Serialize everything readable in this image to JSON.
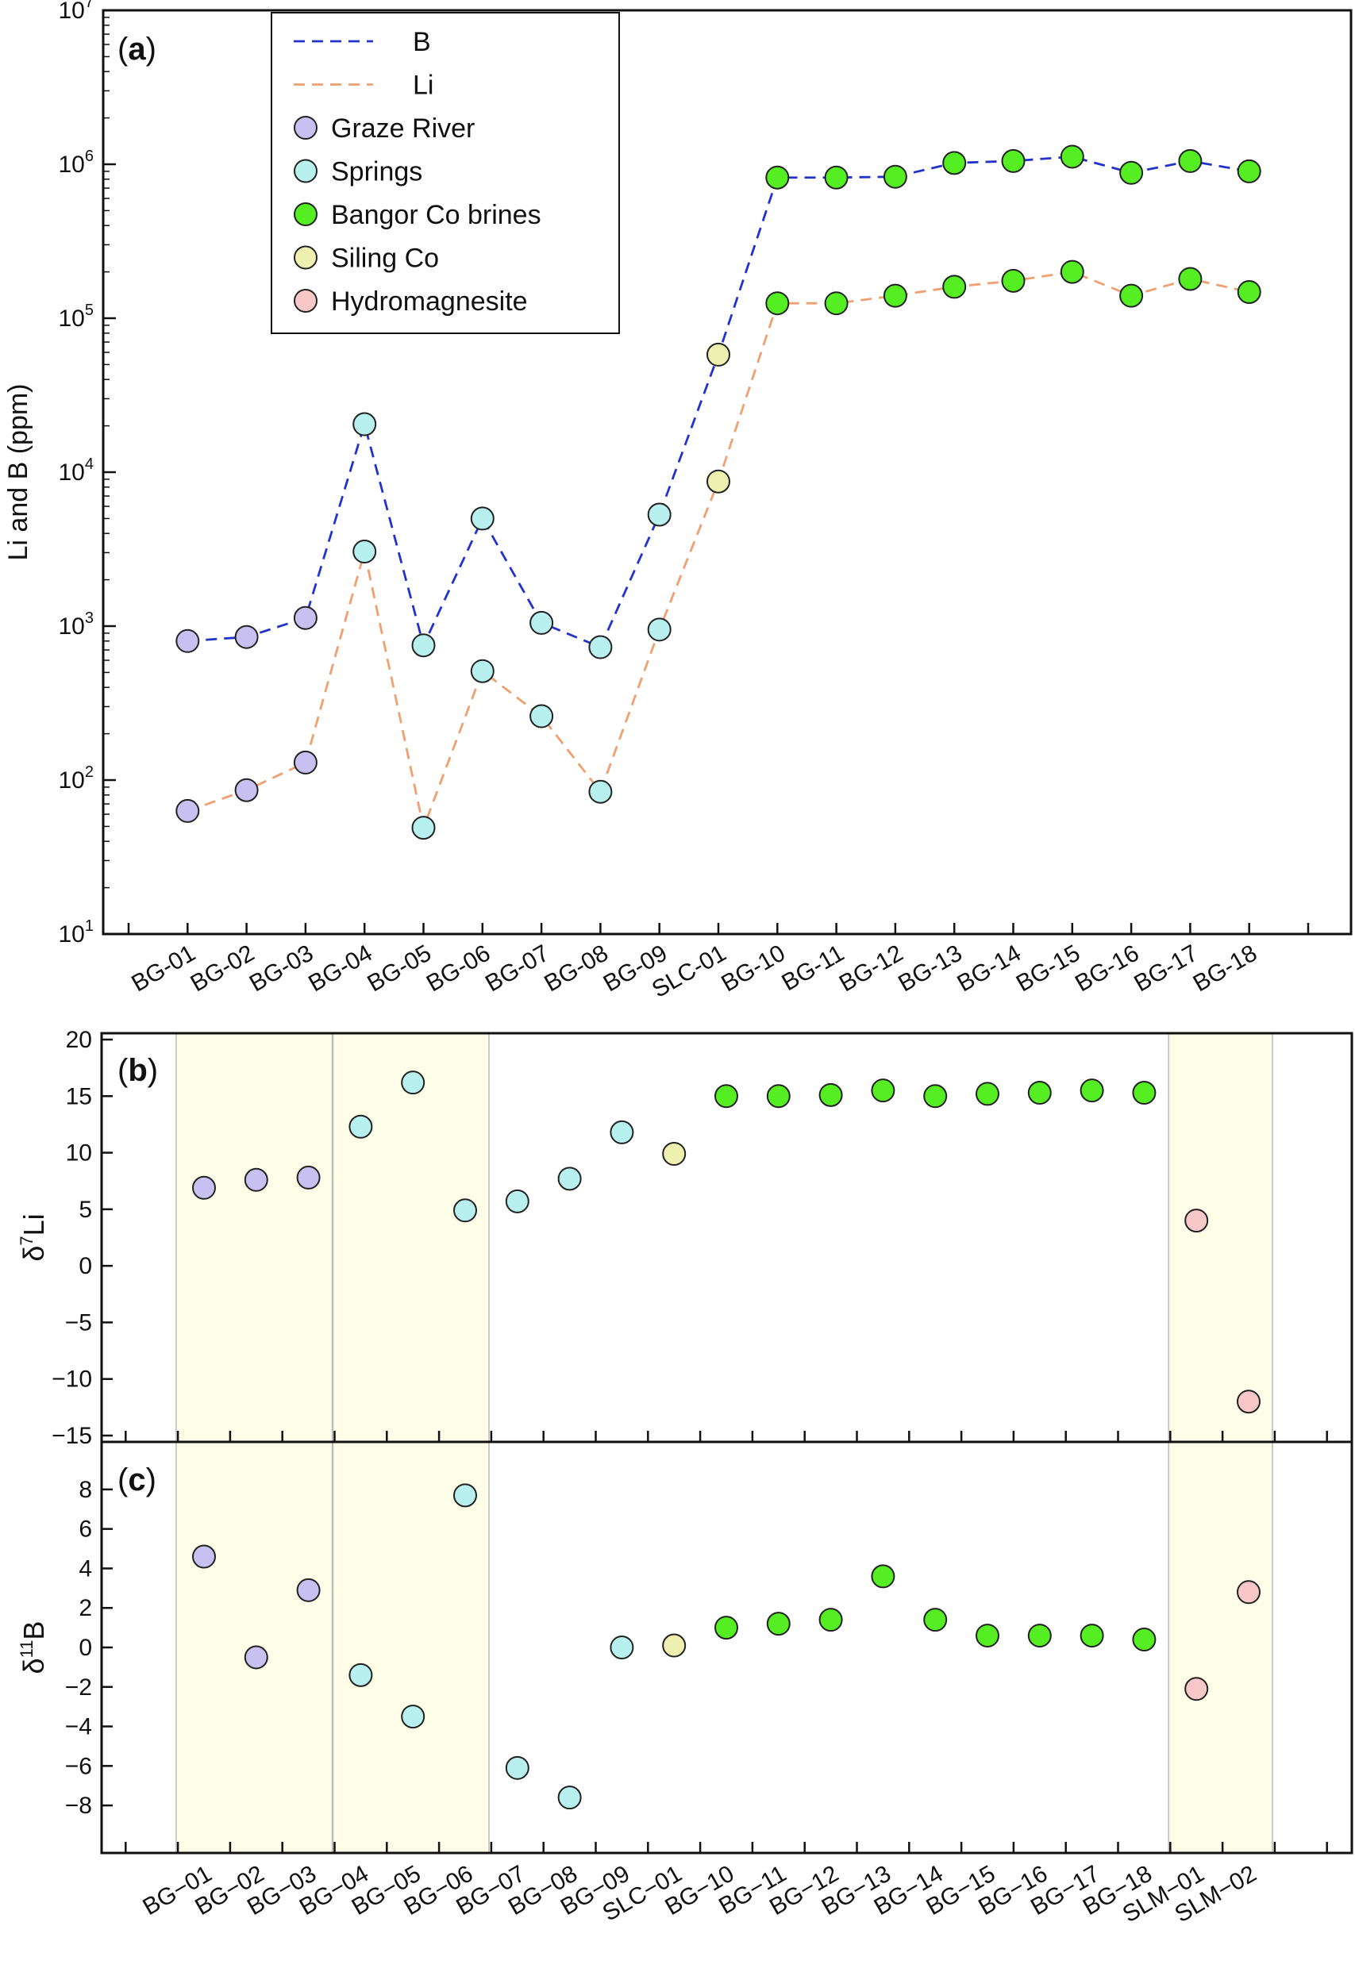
{
  "chart_data": [
    {
      "type": "line",
      "panel_label": "(a)",
      "yscale": "log",
      "ylabel": "Li and B (ppm)",
      "ylim": [
        10,
        10000000
      ],
      "yticks": [
        {
          "value": 10,
          "base": "10",
          "exp": "1"
        },
        {
          "value": 100,
          "base": "10",
          "exp": "2"
        },
        {
          "value": 1000,
          "base": "10",
          "exp": "3"
        },
        {
          "value": 10000,
          "base": "10",
          "exp": "4"
        },
        {
          "value": 100000,
          "base": "10",
          "exp": "5"
        },
        {
          "value": 1000000,
          "base": "10",
          "exp": "6"
        },
        {
          "value": 10000000,
          "base": "10",
          "exp": "7"
        }
      ],
      "categories": [
        "BG-01",
        "BG-02",
        "BG-03",
        "BG-04",
        "BG-05",
        "BG-06",
        "BG-07",
        "BG-08",
        "BG-09",
        "SLC-01",
        "BG-10",
        "BG-11",
        "BG-12",
        "BG-13",
        "BG-14",
        "BG-15",
        "BG-16",
        "BG-17",
        "BG-18"
      ],
      "groups": [
        "Graze River",
        "Graze River",
        "Graze River",
        "Springs",
        "Springs",
        "Springs",
        "Springs",
        "Springs",
        "Springs",
        "Siling Co",
        "Bangor Co brines",
        "Bangor Co brines",
        "Bangor Co brines",
        "Bangor Co brines",
        "Bangor Co brines",
        "Bangor Co brines",
        "Bangor Co brines",
        "Bangor Co brines",
        "Bangor Co brines"
      ],
      "series": [
        {
          "name": "B",
          "line_color": "#2233cc",
          "values": [
            800,
            850,
            1130,
            20500,
            750,
            5000,
            1050,
            730,
            5300,
            58000,
            820000,
            820000,
            830000,
            1020000,
            1050000,
            1120000,
            880000,
            1050000,
            900000
          ]
        },
        {
          "name": "Li",
          "line_color": "#f0a070",
          "values": [
            63,
            86,
            130,
            3050,
            49,
            510,
            260,
            84,
            950,
            8700,
            125000,
            125000,
            140000,
            160000,
            175000,
            200000,
            140000,
            180000,
            148000
          ]
        }
      ],
      "legend_position": "top-left"
    },
    {
      "type": "scatter",
      "panel_label": "(b)",
      "ylabel_main": "δ",
      "ylabel_sup": "7",
      "ylabel_suffix": "Li",
      "ylim": [
        -15,
        20
      ],
      "yticks": [
        "20",
        "15",
        "10",
        "5",
        "0",
        "−5",
        "−10",
        "−15"
      ],
      "ytick_values": [
        20,
        15,
        10,
        5,
        0,
        -5,
        -10,
        -15
      ],
      "categories": [
        "BG-01",
        "BG-02",
        "BG-03",
        "BG-04",
        "BG-05",
        "BG-06",
        "BG-07",
        "BG-08",
        "BG-09",
        "SLC-01",
        "BG-10",
        "BG-11",
        "BG-12",
        "BG-13",
        "BG-14",
        "BG-15",
        "BG-16",
        "BG-17",
        "BG-18",
        "SLM-01",
        "SLM-02"
      ],
      "groups": [
        "Graze River",
        "Graze River",
        "Graze River",
        "Springs",
        "Springs",
        "Springs",
        "Springs",
        "Springs",
        "Springs",
        "Siling Co",
        "Bangor Co brines",
        "Bangor Co brines",
        "Bangor Co brines",
        "Bangor Co brines",
        "Bangor Co brines",
        "Bangor Co brines",
        "Bangor Co brines",
        "Bangor Co brines",
        "Bangor Co brines",
        "Hydromagnesite",
        "Hydromagnesite"
      ],
      "values": [
        6.9,
        7.6,
        7.8,
        12.3,
        16.2,
        4.9,
        5.7,
        7.7,
        11.8,
        9.9,
        15.0,
        15.0,
        15.1,
        15.5,
        15.0,
        15.2,
        15.3,
        15.5,
        15.3,
        4.0,
        -12.0
      ],
      "shaded_spans": [
        [
          0,
          2
        ],
        [
          3,
          5
        ],
        [
          19,
          20
        ]
      ]
    },
    {
      "type": "scatter",
      "panel_label": "(c)",
      "ylabel_main": "δ",
      "ylabel_sup": "11",
      "ylabel_suffix": "B",
      "ylim": [
        -9,
        9
      ],
      "yticks": [
        "8",
        "6",
        "4",
        "2",
        "0",
        "−2",
        "−4",
        "−6",
        "−8"
      ],
      "ytick_values": [
        8,
        6,
        4,
        2,
        0,
        -2,
        -4,
        -6,
        -8
      ],
      "categories": [
        "BG-01",
        "BG-02",
        "BG-03",
        "BG-04",
        "BG-05",
        "BG-06",
        "BG-07",
        "BG-08",
        "BG-09",
        "SLC-01",
        "BG-10",
        "BG-11",
        "BG-12",
        "BG-13",
        "BG-14",
        "BG-15",
        "BG-16",
        "BG-17",
        "BG-18",
        "SLM-01",
        "SLM-02"
      ],
      "tick_labels": [
        "BG−01",
        "BG−02",
        "BG−03",
        "BG−04",
        "BG−05",
        "BG−06",
        "BG−07",
        "BG−08",
        "BG−09",
        "SLC−01",
        "BG−10",
        "BG−11",
        "BG−12",
        "BG−13",
        "BG−14",
        "BG−15",
        "BG−16",
        "BG−17",
        "BG−18",
        "SLM−01",
        "SLM−02"
      ],
      "groups": [
        "Graze River",
        "Graze River",
        "Graze River",
        "Springs",
        "Springs",
        "Springs",
        "Springs",
        "Springs",
        "Springs",
        "Siling Co",
        "Bangor Co brines",
        "Bangor Co brines",
        "Bangor Co brines",
        "Bangor Co brines",
        "Bangor Co brines",
        "Bangor Co brines",
        "Bangor Co brines",
        "Bangor Co brines",
        "Bangor Co brines",
        "Hydromagnesite",
        "Hydromagnesite"
      ],
      "values": [
        4.6,
        -0.5,
        2.9,
        -1.4,
        -3.5,
        7.7,
        -6.1,
        -7.6,
        0.0,
        0.1,
        1.0,
        1.2,
        1.4,
        3.6,
        1.4,
        0.6,
        0.6,
        0.6,
        0.4,
        -2.1,
        2.8
      ],
      "shaded_spans": [
        [
          0,
          2
        ],
        [
          3,
          5
        ],
        [
          19,
          20
        ]
      ]
    }
  ],
  "legend": {
    "items": [
      {
        "label": "B",
        "kind": "line",
        "color": "#2233cc"
      },
      {
        "label": "Li",
        "kind": "line",
        "color": "#f0a070"
      },
      {
        "label": "Graze River",
        "kind": "marker",
        "color": "#c8c0f0"
      },
      {
        "label": "Springs",
        "kind": "marker",
        "color": "#b8f0f0"
      },
      {
        "label": "Bangor Co brines",
        "kind": "marker",
        "color": "#55ee22"
      },
      {
        "label": "Siling Co",
        "kind": "marker",
        "color": "#eef0b0"
      },
      {
        "label": "Hydromagnesite",
        "kind": "marker",
        "color": "#f8c8c8"
      }
    ]
  },
  "colors": {
    "shade": "#fdfde8",
    "Graze River": "#c8c0f0",
    "Springs": "#b8f0f0",
    "Bangor Co brines": "#55ee22",
    "Siling Co": "#eef0b0",
    "Hydromagnesite": "#f8c8c8"
  }
}
